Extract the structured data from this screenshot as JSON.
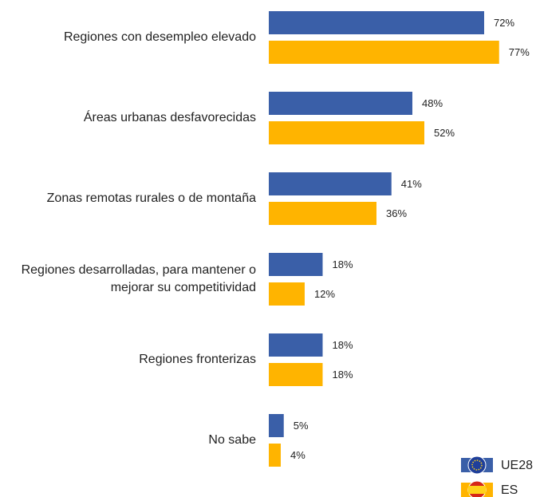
{
  "chart_data": {
    "type": "bar",
    "orientation": "horizontal",
    "categories": [
      "Regiones con desempleo elevado",
      "Áreas urbanas desfavorecidas",
      "Zonas remotas rurales o de montaña",
      "Regiones desarrolladas, para mantener o\nmejorar su competitividad",
      "Regiones fronterizas",
      "No sabe"
    ],
    "series": [
      {
        "name": "UE28",
        "color": "#3a5fa8",
        "values": [
          72,
          48,
          41,
          18,
          18,
          5
        ],
        "value_labels": [
          "72%",
          "48%",
          "41%",
          "18%",
          "18%",
          "5%"
        ]
      },
      {
        "name": "ES",
        "color": "#ffb400",
        "values": [
          77,
          52,
          36,
          12,
          18,
          4
        ],
        "value_labels": [
          "77%",
          "52%",
          "36%",
          "12%",
          "18%",
          "4%"
        ]
      }
    ],
    "legend": "bottom-right"
  }
}
